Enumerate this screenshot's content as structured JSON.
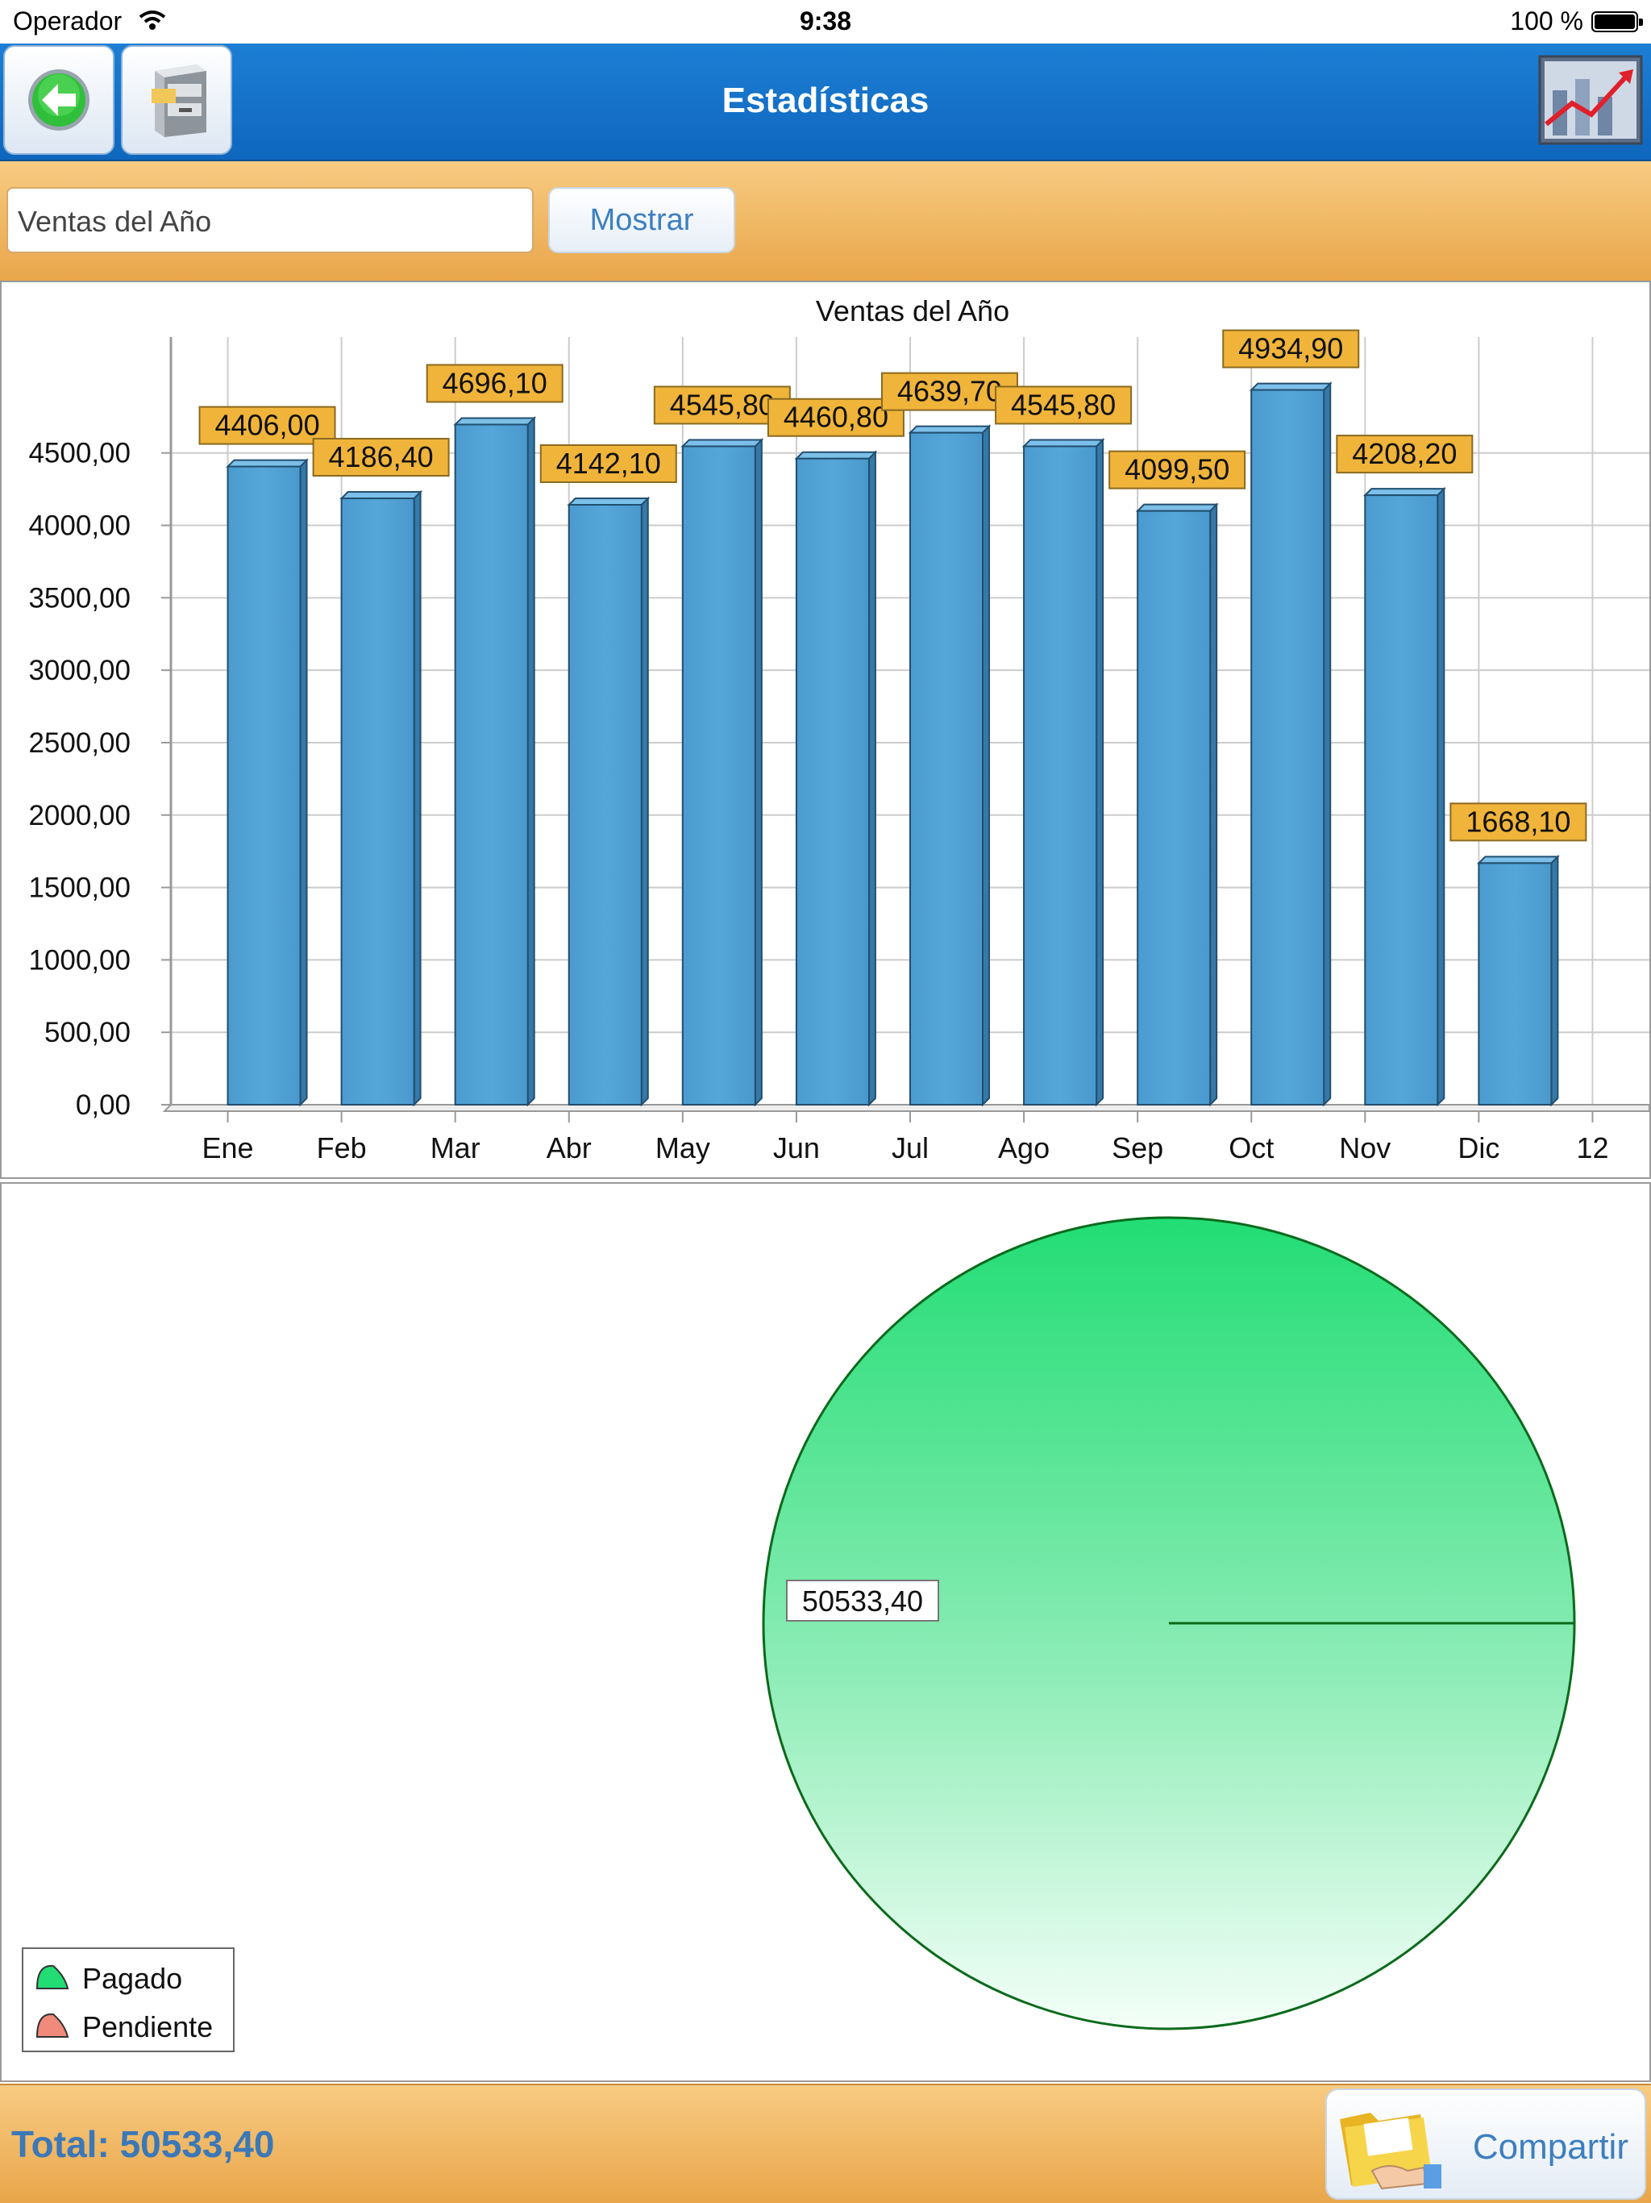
{
  "status_bar": {
    "carrier": "Operador",
    "time": "9:38",
    "battery": "100 %"
  },
  "nav": {
    "title": "Estadísticas",
    "icons": {
      "back": "back-arrow-icon",
      "archive": "file-cabinet-icon",
      "logo": "statistics-chart-icon"
    }
  },
  "filter": {
    "selected_report": "Ventas del Año",
    "show_label": "Mostrar"
  },
  "chart_data": [
    {
      "type": "bar",
      "title": "Ventas del Año",
      "categories": [
        "Ene",
        "Feb",
        "Mar",
        "Abr",
        "May",
        "Jun",
        "Jul",
        "Ago",
        "Sep",
        "Oct",
        "Nov",
        "Dic",
        "12"
      ],
      "values": [
        4406.0,
        4186.4,
        4696.1,
        4142.1,
        4545.8,
        4460.8,
        4639.7,
        4545.8,
        4099.5,
        4934.9,
        4208.2,
        1668.1,
        null
      ],
      "value_labels": [
        "4406,00",
        "4186,40",
        "4696,10",
        "4142,10",
        "4545,80",
        "4460,80",
        "4639,70",
        "4545,80",
        "4099,50",
        "4934,90",
        "4208,20",
        "1668,10",
        ""
      ],
      "y_ticks": [
        "0,00",
        "500,00",
        "1000,00",
        "1500,00",
        "2000,00",
        "2500,00",
        "3000,00",
        "3500,00",
        "4000,00",
        "4500,00"
      ],
      "ylim": [
        0,
        5300
      ],
      "grid": true,
      "bar_color": "#55a6d8",
      "label_color": "#f0b43a"
    },
    {
      "type": "pie",
      "slices": [
        {
          "name": "Pagado",
          "value": 50533.4,
          "label": "50533,40",
          "color": "#22dd74"
        },
        {
          "name": "Pendiente",
          "value": 0,
          "label": "",
          "color": "#f08a7a"
        }
      ],
      "legend": [
        "Pagado",
        "Pendiente"
      ],
      "legend_position": "bottom-left"
    }
  ],
  "footer": {
    "total": "Total: 50533,40",
    "share_label": "Compartir",
    "share_icon": "folder-hand-icon"
  }
}
